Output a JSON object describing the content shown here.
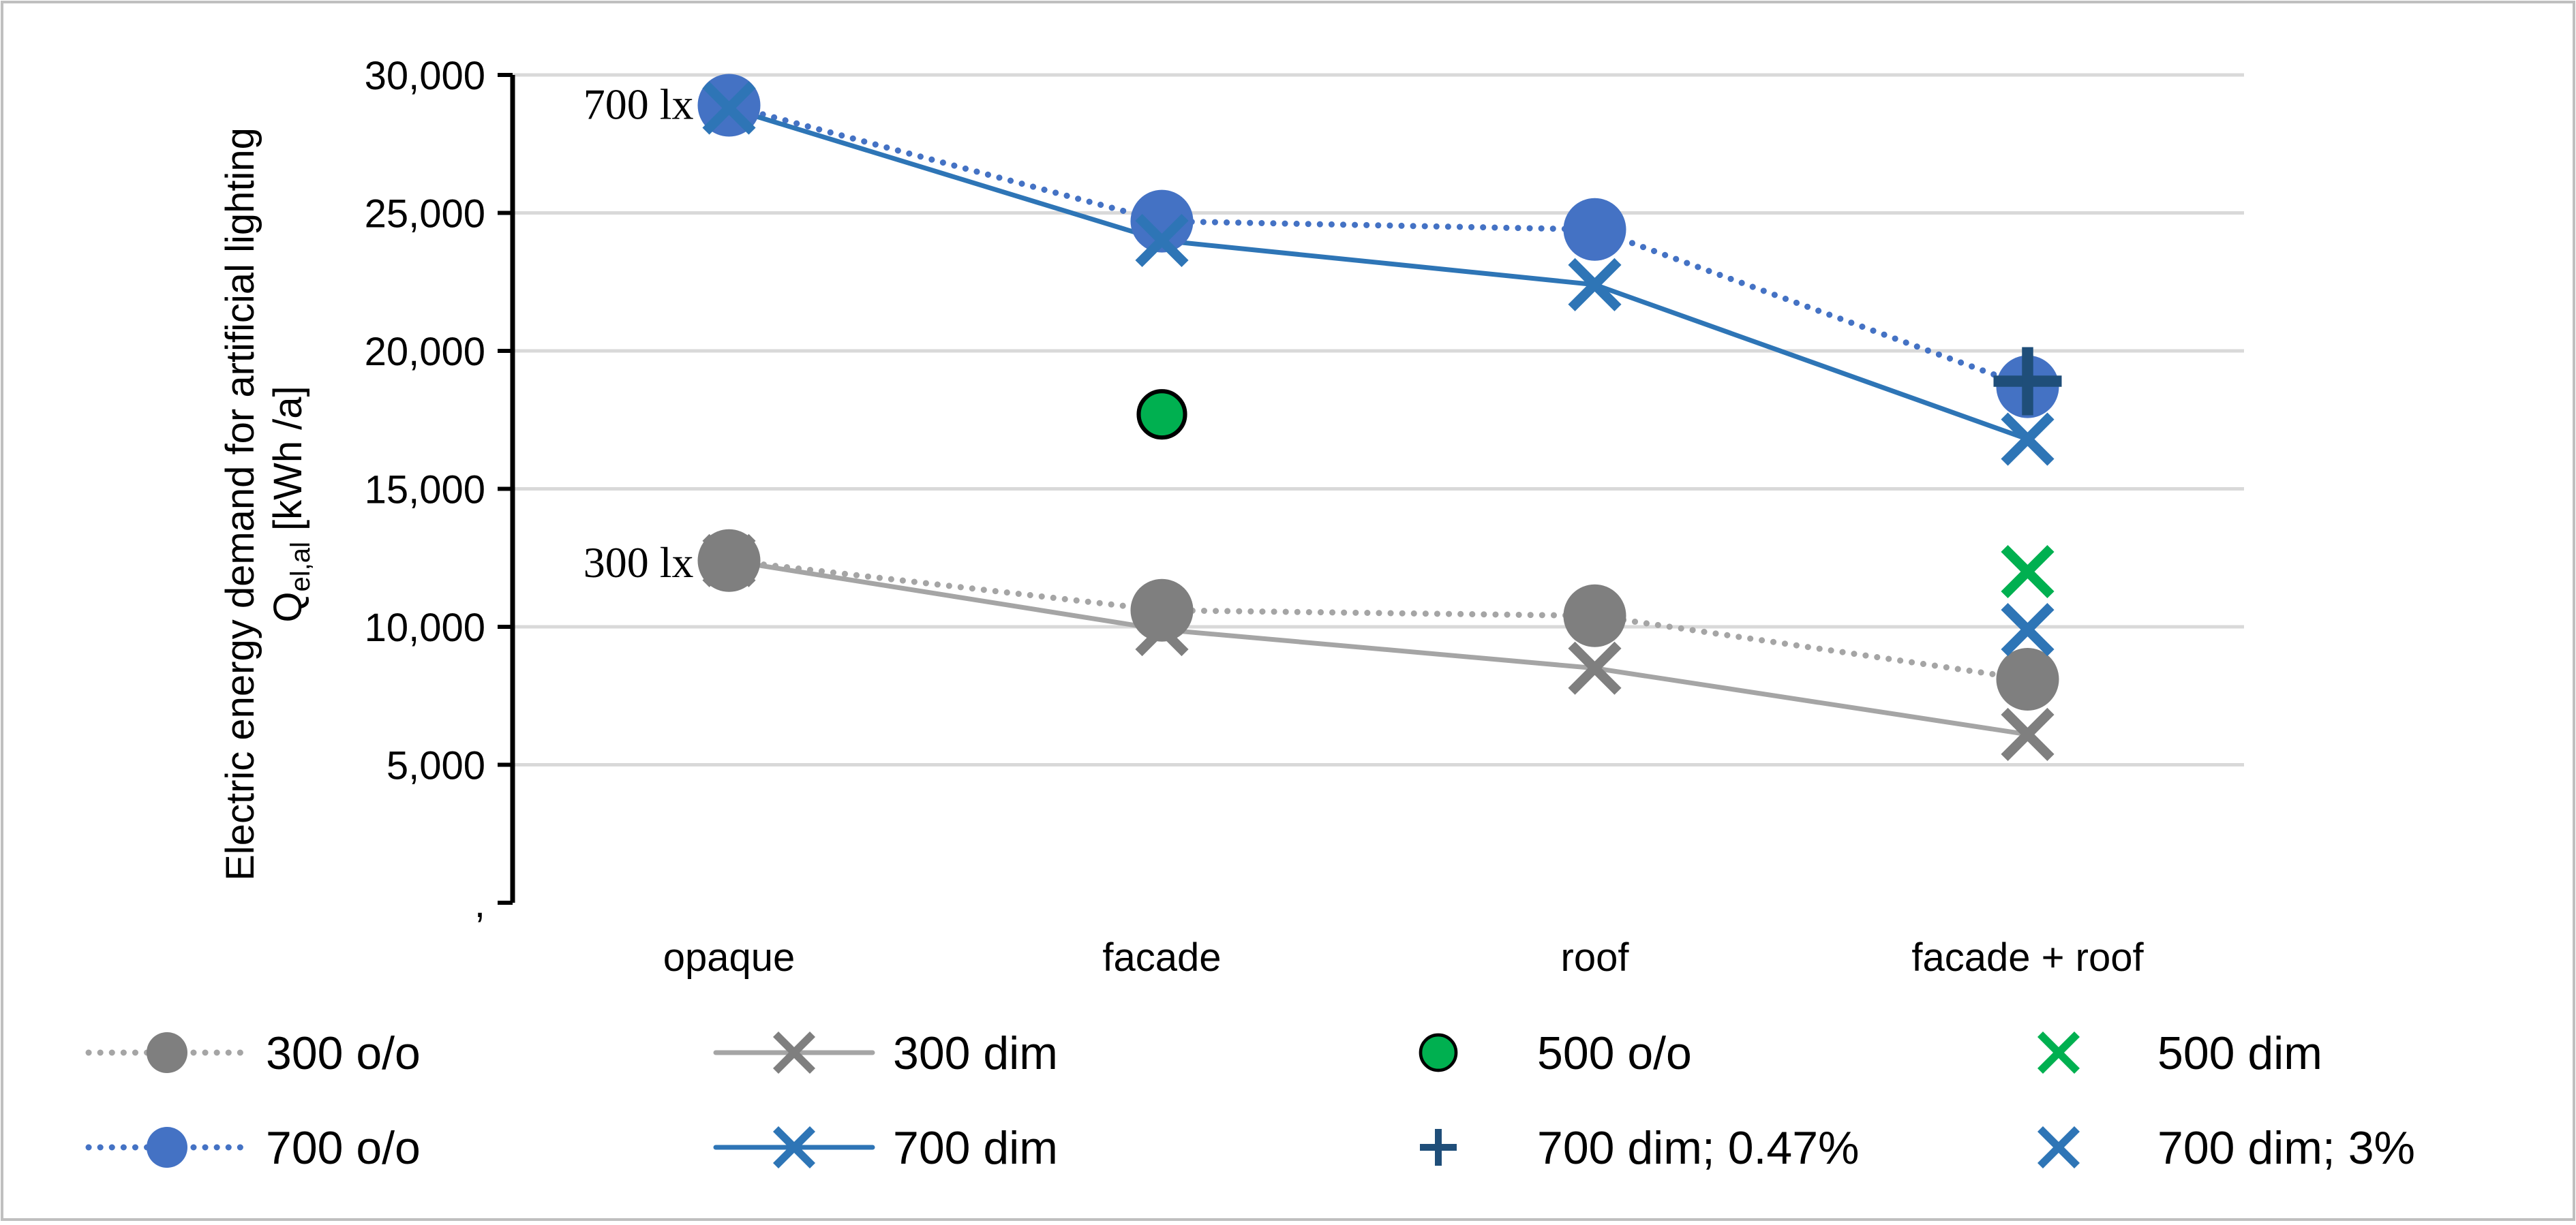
{
  "chart_data": {
    "type": "line",
    "title": "",
    "xlabel": "",
    "ylabel_line1": "Electric energy demand for artificial lighting",
    "ylabel_q": "Q",
    "ylabel_sub": "el,al",
    "ylabel_unit": " [kWh /a]",
    "categories": [
      "opaque",
      "facade",
      "roof",
      "facade + roof"
    ],
    "ylim": [
      0,
      30000
    ],
    "yticks": [
      {
        "value": 30000,
        "label": "30,000"
      },
      {
        "value": 25000,
        "label": "25,000"
      },
      {
        "value": 20000,
        "label": "20,000"
      },
      {
        "value": 15000,
        "label": "15,000"
      },
      {
        "value": 10000,
        "label": "10,000"
      },
      {
        "value": 5000,
        "label": "5,000"
      },
      {
        "value": 0,
        "label": ","
      }
    ],
    "grid": true,
    "annotations": [
      {
        "text": "700 lx",
        "category": 0,
        "value": 29000
      },
      {
        "text": "300 lx",
        "category": 0,
        "value": 12400
      }
    ],
    "series": [
      {
        "name": "300 o/o",
        "marker": "circle",
        "line": "dotted",
        "color": "#7f7f7f",
        "line_color": "#a5a5a5",
        "values": [
          12400,
          10600,
          10400,
          8100
        ]
      },
      {
        "name": "300 dim",
        "marker": "x",
        "line": "solid",
        "color": "#7f7f7f",
        "line_color": "#a5a5a5",
        "values": [
          12400,
          9900,
          8500,
          6100
        ]
      },
      {
        "name": "500 o/o",
        "marker": "circle-outlined",
        "line": "none",
        "color": "#00b050",
        "values": [
          null,
          17700,
          null,
          null
        ]
      },
      {
        "name": "500 dim",
        "marker": "x",
        "line": "none",
        "color": "#00b050",
        "values": [
          null,
          null,
          null,
          12000
        ]
      },
      {
        "name": "700 o/o",
        "marker": "circle",
        "line": "dotted",
        "color": "#4472c4",
        "line_color": "#4472c4",
        "values": [
          28900,
          24700,
          24400,
          18700
        ]
      },
      {
        "name": "700 dim",
        "marker": "x",
        "line": "solid",
        "color": "#2e75b6",
        "line_color": "#2e75b6",
        "values": [
          28800,
          24000,
          22400,
          16800
        ]
      },
      {
        "name": "700 dim; 0.47%",
        "marker": "plus",
        "line": "none",
        "color": "#1f4e79",
        "values": [
          null,
          null,
          null,
          18900
        ]
      },
      {
        "name": "700 dim; 3%",
        "marker": "x",
        "line": "none",
        "color": "#2e75b6",
        "values": [
          null,
          null,
          null,
          9900
        ]
      }
    ],
    "legend": {
      "position": "bottom",
      "rows": [
        [
          "300 o/o",
          "300 dim",
          "500 o/o",
          "500 dim"
        ],
        [
          "700 o/o",
          "700 dim",
          "700 dim; 0.47%",
          "700 dim; 3%"
        ]
      ]
    }
  }
}
